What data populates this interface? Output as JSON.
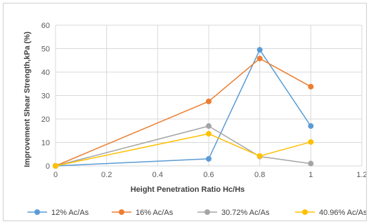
{
  "chart_data": {
    "type": "line",
    "xlabel": "Height Penetration Ratio Hc/Hs",
    "ylabel": "Improvement Shear Strength,kPa (%)",
    "xlim": [
      0,
      1.2
    ],
    "ylim": [
      0,
      60
    ],
    "xticks": [
      0,
      0.2,
      0.4,
      0.6,
      0.8,
      1,
      1.2
    ],
    "xtick_labels": [
      "0",
      "0.2",
      "0.4",
      "0.6",
      "0.8",
      "1",
      "1.2"
    ],
    "yticks": [
      0,
      10,
      20,
      30,
      40,
      50,
      60
    ],
    "ytick_labels": [
      "0",
      "10",
      "20",
      "30",
      "40",
      "50",
      "60"
    ],
    "grid": "major",
    "legend_position": "bottom",
    "series": [
      {
        "name": "12% Ac/As",
        "color": "#5B9BD5",
        "x": [
          0,
          0.6,
          0.8,
          1
        ],
        "y": [
          0,
          3,
          49.5,
          17
        ]
      },
      {
        "name": "16% Ac/As",
        "color": "#ED7D31",
        "x": [
          0,
          0.6,
          0.8,
          1
        ],
        "y": [
          0,
          27.5,
          45.8,
          33.8
        ]
      },
      {
        "name": "30.72% Ac/As",
        "color": "#A5A5A5",
        "x": [
          0,
          0.6,
          0.8,
          1
        ],
        "y": [
          0,
          17,
          4,
          1
        ]
      },
      {
        "name": "40.96% Ac/As",
        "color": "#FFC000",
        "x": [
          0,
          0.6,
          0.8,
          1
        ],
        "y": [
          0,
          13.7,
          4.2,
          10.2
        ]
      }
    ]
  }
}
